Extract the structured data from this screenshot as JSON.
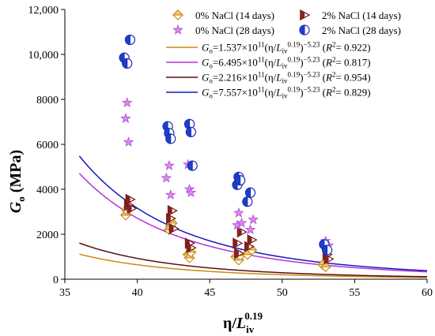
{
  "chart_data": {
    "type": "scatter",
    "xlim": [
      35,
      60
    ],
    "ylim": [
      0,
      12000
    ],
    "x_ticks": [
      35,
      40,
      45,
      50,
      55,
      60
    ],
    "y_ticks": [
      0,
      2000,
      4000,
      6000,
      8000,
      10000,
      12000
    ],
    "y_tick_labels": [
      "0",
      "2000",
      "4000",
      "6000",
      "8000",
      "10,000",
      "12,000"
    ],
    "xlabel": "η/L_iv^0.19",
    "ylabel": "G_o (MPa)",
    "legend_position": "top-right",
    "grid": false,
    "colors": {
      "orange": "#c8921f",
      "orange_fill": "#f2c870",
      "maroon": "#6b1616",
      "maroon_fill": "#8b2020",
      "violet": "#b34cd8",
      "violet_fill": "#d98be8",
      "blue": "#1a2abf",
      "blue_fill": "#1f3fc8",
      "fit_orange": "#cc8a12",
      "fit_violet": "#b732d4",
      "fit_maroon": "#5a1010",
      "fit_blue": "#1616c4"
    },
    "series": [
      {
        "name": "0% NaCl (14 days)",
        "marker": "diamond-half",
        "color_key": "orange",
        "x": [
          39.2,
          39.3,
          39.4,
          42.2,
          42.3,
          42.4,
          43.5,
          43.6,
          43.7,
          46.8,
          47.0,
          47.1,
          47.6,
          47.9,
          52.8,
          53.0
        ],
        "y": [
          2850,
          3050,
          3200,
          2200,
          2350,
          2500,
          1100,
          950,
          1200,
          1000,
          850,
          1050,
          1100,
          1300,
          650,
          550
        ]
      },
      {
        "name": "2% NaCl (14 days)",
        "marker": "triangle-half",
        "color_key": "maroon",
        "x": [
          39.4,
          39.5,
          39.6,
          42.3,
          42.4,
          42.5,
          43.6,
          43.7,
          46.9,
          47.0,
          47.2,
          47.7,
          47.9,
          53.1,
          53.2
        ],
        "y": [
          3300,
          3550,
          3150,
          2700,
          3050,
          2250,
          1600,
          1400,
          1600,
          1150,
          2100,
          1450,
          1750,
          1100,
          900
        ]
      },
      {
        "name": "0% NaCl (28 days)",
        "marker": "star",
        "color_key": "violet",
        "x": [
          39.2,
          39.3,
          39.4,
          42.0,
          42.2,
          42.3,
          43.5,
          43.6,
          43.7,
          46.9,
          47.0,
          47.2,
          47.8,
          48.0,
          53.0,
          53.2
        ],
        "y": [
          7150,
          7850,
          6100,
          4500,
          5050,
          3750,
          5100,
          4000,
          3850,
          2400,
          2950,
          2500,
          2200,
          2650,
          1700,
          1500
        ]
      },
      {
        "name": "2% NaCl (28 days)",
        "marker": "circle-half",
        "color_key": "blue",
        "x": [
          39.1,
          39.3,
          39.5,
          42.1,
          42.2,
          42.3,
          43.6,
          43.7,
          43.8,
          46.9,
          47.0,
          47.1,
          47.6,
          47.8,
          52.9,
          53.1
        ],
        "y": [
          9850,
          9600,
          10650,
          6800,
          6500,
          6250,
          6900,
          6550,
          5050,
          4200,
          4550,
          4400,
          3450,
          3850,
          1550,
          1300
        ]
      }
    ],
    "fits": [
      {
        "label_coef": "1.537×10",
        "label_r2": "0.922",
        "coef": 153700000000.0,
        "exponent": -5.23,
        "color_key": "fit_orange"
      },
      {
        "label_coef": "6.495×10",
        "label_r2": "0.817",
        "coef": 649500000000.0,
        "exponent": -5.23,
        "color_key": "fit_violet"
      },
      {
        "label_coef": "2.216×10",
        "label_r2": "0.954",
        "coef": 221600000000.0,
        "exponent": -5.23,
        "color_key": "fit_maroon"
      },
      {
        "label_coef": "7.557×10",
        "label_r2": "0.829",
        "coef": 755700000000.0,
        "exponent": -5.23,
        "color_key": "fit_blue"
      }
    ],
    "fit_x_start": 36,
    "legend_labels": {
      "g_main": "G",
      "g_sub": "o",
      "equals": "=",
      "eleven": "11",
      "open_paren": "(η/",
      "l_main": "L",
      "l_sub": "iv",
      "inner_exp": "0.19",
      "close_paren": ")",
      "outer_exp": "−5.23",
      "r_open": " (",
      "r_main": "R",
      "r_exp": "2",
      "r_eq": "= ",
      "r_close": ")"
    }
  }
}
